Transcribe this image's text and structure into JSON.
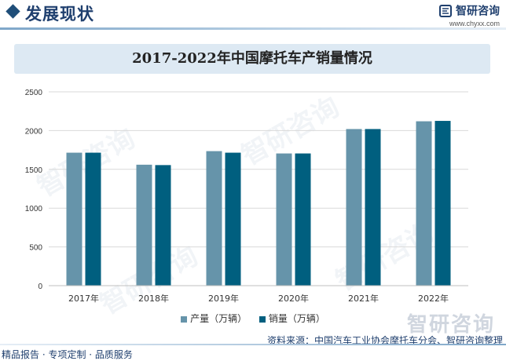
{
  "header": {
    "title": "发展现状",
    "brand_name": "智研咨询",
    "brand_url": "www.chyxx.com"
  },
  "watermark": "智研咨询",
  "colors": {
    "production": "#6694aa",
    "sales": "#005f7f",
    "header": "#1f3f6e"
  },
  "chart_data": {
    "type": "bar",
    "title": "2017-2022年中国摩托车产销量情况",
    "categories": [
      "2017年",
      "2018年",
      "2019年",
      "2020年",
      "2021年",
      "2022年"
    ],
    "series": [
      {
        "name": "产量（万辆）",
        "values": [
          1715,
          1560,
          1735,
          1705,
          2020,
          2120
        ]
      },
      {
        "name": "销量（万辆）",
        "values": [
          1715,
          1555,
          1715,
          1705,
          2020,
          2125
        ]
      }
    ],
    "ylim": [
      0,
      2500
    ],
    "yticks": [
      0,
      500,
      1000,
      1500,
      2000,
      2500
    ],
    "grid": true,
    "legend": "bottom"
  },
  "footer": {
    "left": "精品报告 · 专项定制 · 品质服务",
    "source": "资料来源：中国汽车工业协会摩托车分会、智研咨询整理"
  }
}
